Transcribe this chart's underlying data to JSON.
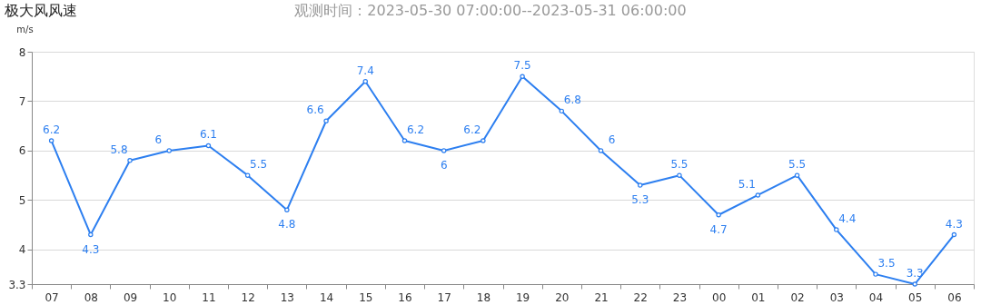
{
  "chart_data": {
    "type": "line",
    "title": "极大风风速",
    "subtitle": "观测时间：2023-05-30 07:00:00--2023-05-31 06:00:00",
    "ylabel": "m/s",
    "categories": [
      "07",
      "08",
      "09",
      "10",
      "11",
      "12",
      "13",
      "14",
      "15",
      "16",
      "17",
      "18",
      "19",
      "20",
      "21",
      "22",
      "23",
      "00",
      "01",
      "02",
      "03",
      "04",
      "05",
      "06"
    ],
    "series": [
      {
        "color": "#2d7ff0",
        "values": [
          6.2,
          4.3,
          5.8,
          6,
          6.1,
          5.5,
          4.8,
          6.6,
          7.4,
          6.2,
          6,
          6.2,
          7.5,
          6.8,
          6,
          5.3,
          5.5,
          4.7,
          5.1,
          5.5,
          4.4,
          3.5,
          3.3,
          4.3
        ]
      }
    ],
    "ylim": [
      3.3,
      8
    ],
    "yticks": [
      {
        "value": 3.3,
        "label": "3.3"
      },
      4,
      5,
      6,
      7,
      8
    ],
    "grid": "y",
    "marker": "circle",
    "line_style": "solid",
    "data_labels": true
  }
}
